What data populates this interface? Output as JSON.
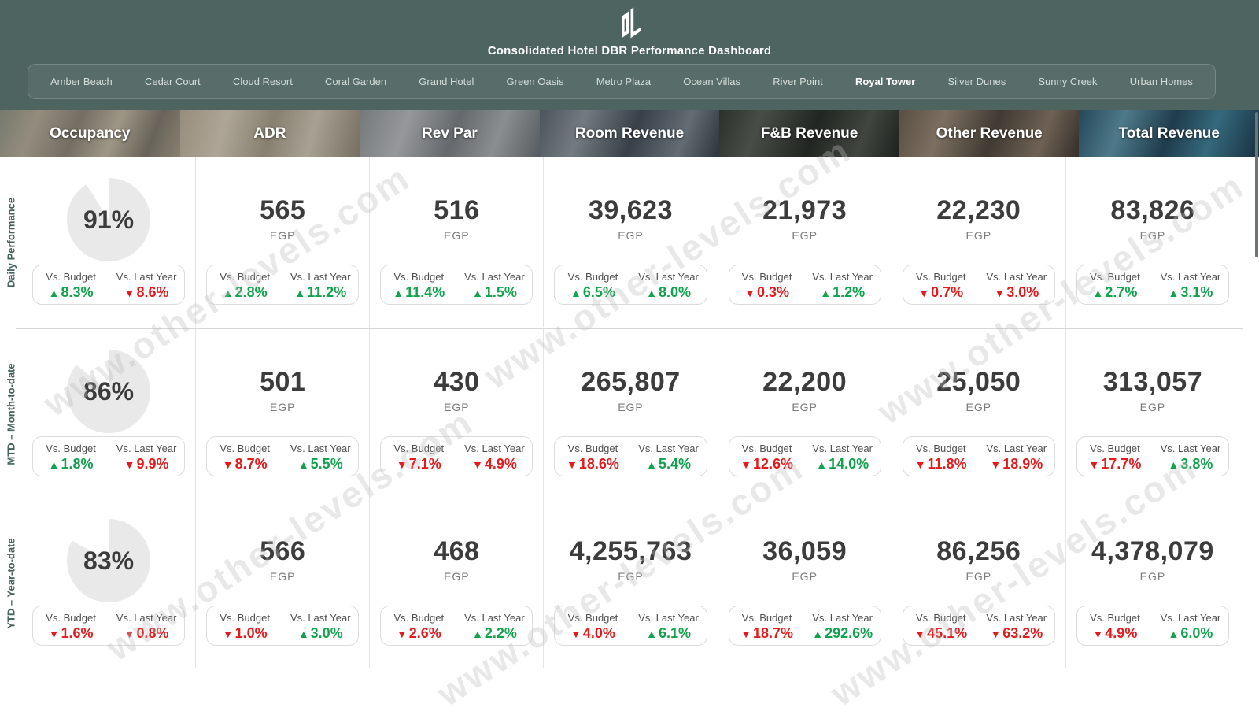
{
  "header": {
    "title": "Consolidated Hotel DBR Performance Dashboard"
  },
  "nav": {
    "hotels": [
      {
        "label": "Amber Beach",
        "active": false
      },
      {
        "label": "Cedar Court",
        "active": false
      },
      {
        "label": "Cloud Resort",
        "active": false
      },
      {
        "label": "Coral Garden",
        "active": false
      },
      {
        "label": "Grand Hotel",
        "active": false
      },
      {
        "label": "Green Oasis",
        "active": false
      },
      {
        "label": "Metro Plaza",
        "active": false
      },
      {
        "label": "Ocean Villas",
        "active": false
      },
      {
        "label": "River Point",
        "active": false
      },
      {
        "label": "Royal Tower",
        "active": true
      },
      {
        "label": "Silver Dunes",
        "active": false
      },
      {
        "label": "Sunny Creek",
        "active": false
      },
      {
        "label": "Urban Homes",
        "active": false
      }
    ]
  },
  "columns": [
    {
      "key": "occupancy",
      "label": "Occupancy"
    },
    {
      "key": "adr",
      "label": "ADR"
    },
    {
      "key": "revpar",
      "label": "Rev Par"
    },
    {
      "key": "room-revenue",
      "label": "Room Revenue"
    },
    {
      "key": "fnb-revenue",
      "label": "F&B Revenue"
    },
    {
      "key": "other-revenue",
      "label": "Other Revenue"
    },
    {
      "key": "total-revenue",
      "label": "Total Revenue"
    }
  ],
  "labels": {
    "vs_budget": "Vs. Budget",
    "vs_last_year": "Vs. Last Year",
    "up_arrow": "▲",
    "down_arrow": "▼"
  },
  "rows": [
    {
      "key": "daily",
      "label": "Daily Performance",
      "cells": [
        {
          "type": "pie",
          "value": "91%",
          "pct": 91,
          "budget": {
            "dir": "up",
            "value": "8.3%"
          },
          "last_year": {
            "dir": "down",
            "value": "8.6%"
          }
        },
        {
          "type": "number",
          "value": "565",
          "unit": "EGP",
          "budget": {
            "dir": "up",
            "value": "2.8%"
          },
          "last_year": {
            "dir": "up",
            "value": "11.2%"
          }
        },
        {
          "type": "number",
          "value": "516",
          "unit": "EGP",
          "budget": {
            "dir": "up",
            "value": "11.4%"
          },
          "last_year": {
            "dir": "up",
            "value": "1.5%"
          }
        },
        {
          "type": "number",
          "value": "39,623",
          "unit": "EGP",
          "budget": {
            "dir": "up",
            "value": "6.5%"
          },
          "last_year": {
            "dir": "up",
            "value": "8.0%"
          }
        },
        {
          "type": "number",
          "value": "21,973",
          "unit": "EGP",
          "budget": {
            "dir": "down",
            "value": "0.3%"
          },
          "last_year": {
            "dir": "up",
            "value": "1.2%"
          }
        },
        {
          "type": "number",
          "value": "22,230",
          "unit": "EGP",
          "budget": {
            "dir": "down",
            "value": "0.7%"
          },
          "last_year": {
            "dir": "down",
            "value": "3.0%"
          }
        },
        {
          "type": "number",
          "value": "83,826",
          "unit": "EGP",
          "budget": {
            "dir": "up",
            "value": "2.7%"
          },
          "last_year": {
            "dir": "up",
            "value": "3.1%"
          }
        }
      ]
    },
    {
      "key": "mtd",
      "label": "MTD – Month-to-date",
      "cells": [
        {
          "type": "pie",
          "value": "86%",
          "pct": 86,
          "budget": {
            "dir": "up",
            "value": "1.8%"
          },
          "last_year": {
            "dir": "down",
            "value": "9.9%"
          }
        },
        {
          "type": "number",
          "value": "501",
          "unit": "EGP",
          "budget": {
            "dir": "down",
            "value": "8.7%"
          },
          "last_year": {
            "dir": "up",
            "value": "5.5%"
          }
        },
        {
          "type": "number",
          "value": "430",
          "unit": "EGP",
          "budget": {
            "dir": "down",
            "value": "7.1%"
          },
          "last_year": {
            "dir": "down",
            "value": "4.9%"
          }
        },
        {
          "type": "number",
          "value": "265,807",
          "unit": "EGP",
          "budget": {
            "dir": "down",
            "value": "18.6%"
          },
          "last_year": {
            "dir": "up",
            "value": "5.4%"
          }
        },
        {
          "type": "number",
          "value": "22,200",
          "unit": "EGP",
          "budget": {
            "dir": "down",
            "value": "12.6%"
          },
          "last_year": {
            "dir": "up",
            "value": "14.0%"
          }
        },
        {
          "type": "number",
          "value": "25,050",
          "unit": "EGP",
          "budget": {
            "dir": "down",
            "value": "11.8%"
          },
          "last_year": {
            "dir": "down",
            "value": "18.9%"
          }
        },
        {
          "type": "number",
          "value": "313,057",
          "unit": "EGP",
          "budget": {
            "dir": "down",
            "value": "17.7%"
          },
          "last_year": {
            "dir": "up",
            "value": "3.8%"
          }
        }
      ]
    },
    {
      "key": "ytd",
      "label": "YTD – Year-to-date",
      "cells": [
        {
          "type": "pie",
          "value": "83%",
          "pct": 83,
          "budget": {
            "dir": "down",
            "value": "1.6%"
          },
          "last_year": {
            "dir": "down",
            "value": "0.8%"
          }
        },
        {
          "type": "number",
          "value": "566",
          "unit": "EGP",
          "budget": {
            "dir": "down",
            "value": "1.0%"
          },
          "last_year": {
            "dir": "up",
            "value": "3.0%"
          }
        },
        {
          "type": "number",
          "value": "468",
          "unit": "EGP",
          "budget": {
            "dir": "down",
            "value": "2.6%"
          },
          "last_year": {
            "dir": "up",
            "value": "2.2%"
          }
        },
        {
          "type": "number",
          "value": "4,255,763",
          "unit": "EGP",
          "budget": {
            "dir": "down",
            "value": "4.0%"
          },
          "last_year": {
            "dir": "up",
            "value": "6.1%"
          }
        },
        {
          "type": "number",
          "value": "36,059",
          "unit": "EGP",
          "budget": {
            "dir": "down",
            "value": "18.7%"
          },
          "last_year": {
            "dir": "up",
            "value": "292.6%"
          }
        },
        {
          "type": "number",
          "value": "86,256",
          "unit": "EGP",
          "budget": {
            "dir": "down",
            "value": "45.1%"
          },
          "last_year": {
            "dir": "down",
            "value": "63.2%"
          }
        },
        {
          "type": "number",
          "value": "4,378,079",
          "unit": "EGP",
          "budget": {
            "dir": "down",
            "value": "4.9%"
          },
          "last_year": {
            "dir": "up",
            "value": "6.0%"
          }
        }
      ]
    }
  ],
  "watermark": {
    "text": "www.other-levels.com"
  },
  "colors": {
    "header_background": "#4e6460",
    "green": "#10a24c",
    "red": "#e41a1c",
    "big_number": "#3c3c3c",
    "pie_fill": "#e9e9e9",
    "divider": "#d5d6da",
    "row_label": "#44615c"
  }
}
